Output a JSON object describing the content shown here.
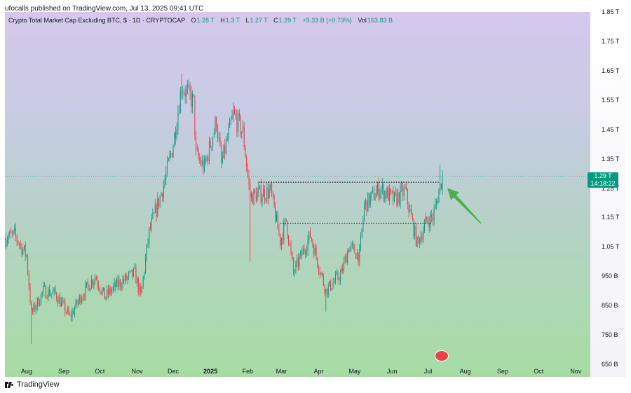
{
  "header": {
    "published_by": "ufocalls published on TradingView.com, Jul 13, 2025 09:41 UTC"
  },
  "legend": {
    "title": "Crypto Total Market Cap Excluding BTC, $ · 1D · CRYPTOCAP",
    "open_label": "O",
    "open": "1.28 T",
    "high_label": "H",
    "high": "1.3 T",
    "low_label": "L",
    "low": "1.27 T",
    "close_label": "C",
    "close": "1.29 T",
    "change": "+9.33 B (+0.73%)",
    "vol_label": "Vol",
    "vol": "163.83 B"
  },
  "price_tag": {
    "value": "1.29 T",
    "countdown": "14:18:22"
  },
  "footer": {
    "brand": "TradingView"
  },
  "colors": {
    "up": "#089981",
    "down": "#f23645",
    "arrow": "#4caf50",
    "line": "#131722"
  },
  "chart_data": {
    "type": "candlestick",
    "title": "Crypto Total Market Cap Excluding BTC, $ · 1D · CRYPTOCAP",
    "y_unit": "USD",
    "ylim": [
      650,
      1850
    ],
    "y_ticks": [
      {
        "v": 1850,
        "label": "1.85 T"
      },
      {
        "v": 1750,
        "label": "1.75 T"
      },
      {
        "v": 1650,
        "label": "1.65 T"
      },
      {
        "v": 1550,
        "label": "1.55 T"
      },
      {
        "v": 1450,
        "label": "1.45 T"
      },
      {
        "v": 1350,
        "label": "1.35 T"
      },
      {
        "v": 1250,
        "label": "1.25 T"
      },
      {
        "v": 1150,
        "label": "1.15 T"
      },
      {
        "v": 1050,
        "label": "1.05 T"
      },
      {
        "v": 950,
        "label": "950 B"
      },
      {
        "v": 850,
        "label": "850 B"
      },
      {
        "v": 750,
        "label": "750 B"
      },
      {
        "v": 650,
        "label": "650 B"
      }
    ],
    "x_ticks": [
      {
        "date": "2024-08-01",
        "label": "Aug"
      },
      {
        "date": "2024-09-01",
        "label": "Sep"
      },
      {
        "date": "2024-10-01",
        "label": "Oct"
      },
      {
        "date": "2024-11-01",
        "label": "Nov"
      },
      {
        "date": "2024-12-01",
        "label": "Dec"
      },
      {
        "date": "2025-01-01",
        "label": "2025",
        "bold": true
      },
      {
        "date": "2025-02-01",
        "label": "Feb"
      },
      {
        "date": "2025-03-01",
        "label": "Mar"
      },
      {
        "date": "2025-04-01",
        "label": "Apr"
      },
      {
        "date": "2025-05-01",
        "label": "May"
      },
      {
        "date": "2025-06-01",
        "label": "Jun"
      },
      {
        "date": "2025-07-01",
        "label": "Jul"
      },
      {
        "date": "2025-08-01",
        "label": "Aug"
      },
      {
        "date": "2025-09-01",
        "label": "Sep"
      },
      {
        "date": "2025-10-01",
        "label": "Oct"
      },
      {
        "date": "2025-11-01",
        "label": "Nov"
      }
    ],
    "xlim": [
      "2024-07-14",
      "2025-11-13"
    ],
    "current_price": 1290,
    "price_anchors": [
      [
        "2024-07-14",
        1080
      ],
      [
        "2024-07-22",
        1090
      ],
      [
        "2024-08-01",
        1020
      ],
      [
        "2024-08-05",
        820
      ],
      [
        "2024-08-15",
        900
      ],
      [
        "2024-08-25",
        890
      ],
      [
        "2024-09-06",
        810
      ],
      [
        "2024-09-15",
        880
      ],
      [
        "2024-09-27",
        950
      ],
      [
        "2024-10-05",
        880
      ],
      [
        "2024-10-15",
        920
      ],
      [
        "2024-10-30",
        960
      ],
      [
        "2024-11-04",
        880
      ],
      [
        "2024-11-11",
        1100
      ],
      [
        "2024-11-23",
        1260
      ],
      [
        "2024-12-01",
        1400
      ],
      [
        "2024-12-08",
        1600
      ],
      [
        "2024-12-18",
        1540
      ],
      [
        "2024-12-20",
        1360
      ],
      [
        "2024-12-27",
        1320
      ],
      [
        "2025-01-06",
        1480
      ],
      [
        "2025-01-10",
        1330
      ],
      [
        "2025-01-20",
        1500
      ],
      [
        "2025-01-28",
        1440
      ],
      [
        "2025-02-03",
        1220
      ],
      [
        "2025-02-10",
        1230
      ],
      [
        "2025-02-20",
        1240
      ],
      [
        "2025-02-28",
        1070
      ],
      [
        "2025-03-05",
        1140
      ],
      [
        "2025-03-11",
        960
      ],
      [
        "2025-03-25",
        1090
      ],
      [
        "2025-04-07",
        900
      ],
      [
        "2025-04-20",
        960
      ],
      [
        "2025-04-26",
        1050
      ],
      [
        "2025-05-05",
        1020
      ],
      [
        "2025-05-09",
        1190
      ],
      [
        "2025-05-22",
        1250
      ],
      [
        "2025-06-03",
        1210
      ],
      [
        "2025-06-12",
        1240
      ],
      [
        "2025-06-18",
        1130
      ],
      [
        "2025-06-22",
        1060
      ],
      [
        "2025-06-30",
        1140
      ],
      [
        "2025-07-05",
        1150
      ],
      [
        "2025-07-13",
        1290
      ]
    ],
    "wick_extremes": [
      {
        "date": "2024-08-05",
        "low": 720
      },
      {
        "date": "2024-12-08",
        "high": 1640
      },
      {
        "date": "2025-02-03",
        "low": 1000
      },
      {
        "date": "2025-04-07",
        "low": 830
      },
      {
        "date": "2025-07-11",
        "high": 1330
      }
    ],
    "levels": [
      {
        "value": 1270,
        "from": "2025-02-10",
        "to": "2025-07-10",
        "style": "dotted"
      },
      {
        "value": 1130,
        "from": "2025-02-28",
        "to": "2025-07-04",
        "style": "dotted"
      }
    ],
    "annotation": {
      "type": "arrow",
      "points_to": "breakout",
      "color": "green"
    }
  }
}
